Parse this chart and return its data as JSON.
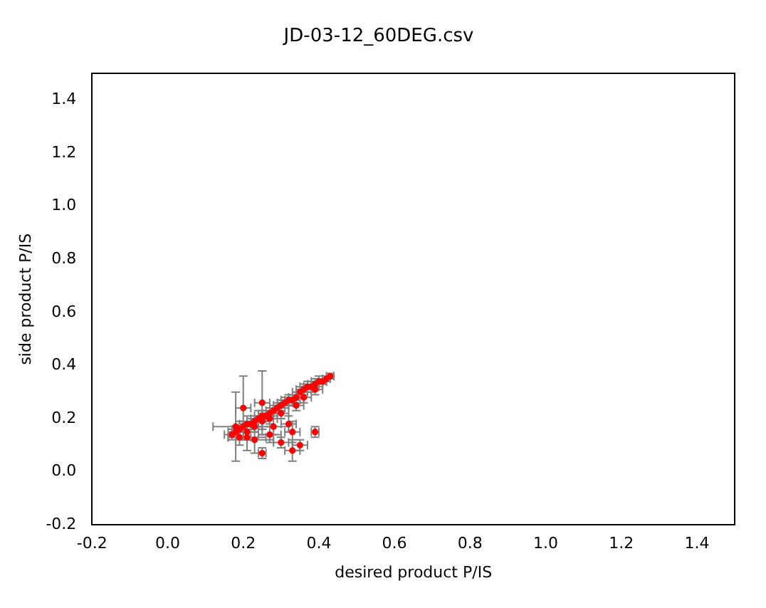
{
  "chart_data": {
    "type": "scatter",
    "title": "JD-03-12_60DEG.csv",
    "xlabel": "desired product P/IS",
    "ylabel": "side product P/IS",
    "xlim": [
      -0.2,
      1.5
    ],
    "ylim": [
      -0.2,
      1.5
    ],
    "xticks": [
      -0.2,
      {
        "value": 0,
        "label": "0.0"
      },
      0.2,
      0.4,
      0.6,
      0.8,
      {
        "value": 1,
        "label": "1.0"
      },
      1.2,
      1.4
    ],
    "yticks": [
      -0.2,
      {
        "value": 0,
        "label": "0.0"
      },
      0.2,
      0.4,
      0.6,
      0.8,
      {
        "value": 1,
        "label": "1.0"
      },
      1.2,
      1.4
    ],
    "grid": false,
    "legend": false,
    "marker": "circle",
    "series": [
      {
        "color": "#ff0000",
        "x": [
          0.17,
          0.18,
          0.19,
          0.2,
          0.21,
          0.22,
          0.23,
          0.24,
          0.25,
          0.26,
          0.27,
          0.28,
          0.29,
          0.3,
          0.31,
          0.32,
          0.33,
          0.34,
          0.35,
          0.36,
          0.37,
          0.38,
          0.39,
          0.4,
          0.41,
          0.42,
          0.43,
          0.19,
          0.21,
          0.23,
          0.25,
          0.27,
          0.3,
          0.34,
          0.36,
          0.39,
          0.39,
          0.33,
          0.35,
          0.25,
          0.3,
          0.32,
          0.28,
          0.25,
          0.2,
          0.18,
          0.21,
          0.23,
          0.27,
          0.33
        ],
        "values": [
          0.14,
          0.15,
          0.16,
          0.17,
          0.18,
          0.18,
          0.19,
          0.2,
          0.21,
          0.21,
          0.22,
          0.23,
          0.24,
          0.25,
          0.26,
          0.27,
          0.27,
          0.28,
          0.3,
          0.31,
          0.32,
          0.32,
          0.33,
          0.34,
          0.34,
          0.35,
          0.36,
          0.13,
          0.15,
          0.17,
          0.19,
          0.2,
          0.22,
          0.25,
          0.28,
          0.31,
          0.15,
          0.08,
          0.1,
          0.07,
          0.11,
          0.18,
          0.17,
          0.26,
          0.24,
          0.17,
          0.13,
          0.12,
          0.14,
          0.15
        ],
        "errors": [
          0.02,
          0.02,
          0.03,
          0.02,
          0.03,
          0.02,
          0.02,
          0.03,
          0.02,
          0.02,
          0.02,
          0.02,
          0.02,
          0.02,
          0.02,
          0.02,
          0.02,
          0.02,
          0.02,
          0.02,
          0.02,
          0.02,
          0.02,
          0.02,
          0.01,
          0.01,
          0.01,
          0.03,
          0.03,
          0.02,
          0.03,
          0.02,
          0.02,
          0.02,
          0.02,
          0.02,
          0.02,
          0.04,
          0.02,
          0.02,
          0.02,
          0.03,
          0.03,
          0.12,
          0.12,
          0.13,
          0.05,
          0.05,
          0.03,
          0.04
        ],
        "xerrors": [
          0.02,
          0.02,
          0.02,
          0.02,
          0.02,
          0.02,
          0.02,
          0.02,
          0.02,
          0.02,
          0.02,
          0.02,
          0.02,
          0.02,
          0.02,
          0.02,
          0.02,
          0.02,
          0.02,
          0.02,
          0.02,
          0.02,
          0.02,
          0.02,
          0.01,
          0.01,
          0.01,
          0.03,
          0.03,
          0.02,
          0.02,
          0.02,
          0.02,
          0.02,
          0.02,
          0.02,
          0.01,
          0.02,
          0.02,
          0.01,
          0.02,
          0.02,
          0.04,
          0.02,
          0.02,
          0.06,
          0.05,
          0.05,
          0.03,
          0.02
        ]
      }
    ]
  }
}
